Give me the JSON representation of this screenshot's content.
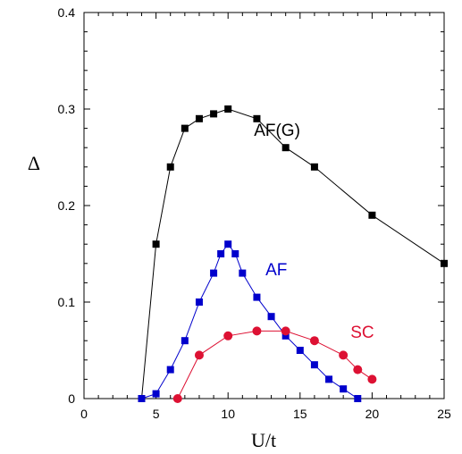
{
  "chart_data": {
    "type": "line",
    "title": "",
    "xlabel": "U/t",
    "ylabel": "Δ",
    "xlim": [
      0,
      25
    ],
    "ylim": [
      0,
      0.4
    ],
    "x_ticks": [
      "0",
      "5",
      "10",
      "15",
      "20",
      "25"
    ],
    "y_ticks": [
      "0",
      "0.1",
      "0.2",
      "0.3",
      "0.4"
    ],
    "x_minor_step": 1,
    "y_minor_step": 0.02,
    "grid": false,
    "legend": "none",
    "series": [
      {
        "name": "AF(G)",
        "color": "#000000",
        "label_color": "#000000",
        "marker": "square",
        "points": [
          [
            4,
            0
          ],
          [
            5,
            0.16
          ],
          [
            6,
            0.24
          ],
          [
            7,
            0.28
          ],
          [
            8,
            0.29
          ],
          [
            9,
            0.295
          ],
          [
            10,
            0.3
          ],
          [
            12,
            0.29
          ],
          [
            14,
            0.26
          ],
          [
            16,
            0.24
          ],
          [
            20,
            0.19
          ],
          [
            25,
            0.14
          ]
        ],
        "label_at": [
          11.8,
          0.272
        ]
      },
      {
        "name": "AF",
        "color": "#0000cc",
        "label_color": "#0000cc",
        "marker": "square",
        "points": [
          [
            4,
            0
          ],
          [
            5,
            0.005
          ],
          [
            6,
            0.03
          ],
          [
            7,
            0.06
          ],
          [
            8,
            0.1
          ],
          [
            9,
            0.13
          ],
          [
            9.5,
            0.15
          ],
          [
            10,
            0.16
          ],
          [
            10.5,
            0.15
          ],
          [
            11,
            0.13
          ],
          [
            12,
            0.105
          ],
          [
            13,
            0.085
          ],
          [
            14,
            0.065
          ],
          [
            15,
            0.05
          ],
          [
            16,
            0.035
          ],
          [
            17,
            0.02
          ],
          [
            18,
            0.01
          ],
          [
            19,
            0
          ]
        ],
        "label_at": [
          12.6,
          0.128
        ]
      },
      {
        "name": "SC",
        "color": "#dd1133",
        "label_color": "#dd1133",
        "marker": "circle",
        "points": [
          [
            6.5,
            0
          ],
          [
            8,
            0.045
          ],
          [
            10,
            0.065
          ],
          [
            12,
            0.07
          ],
          [
            14,
            0.07
          ],
          [
            16,
            0.06
          ],
          [
            18,
            0.045
          ],
          [
            19,
            0.03
          ],
          [
            20,
            0.02
          ]
        ],
        "label_at": [
          18.5,
          0.063
        ]
      }
    ]
  }
}
